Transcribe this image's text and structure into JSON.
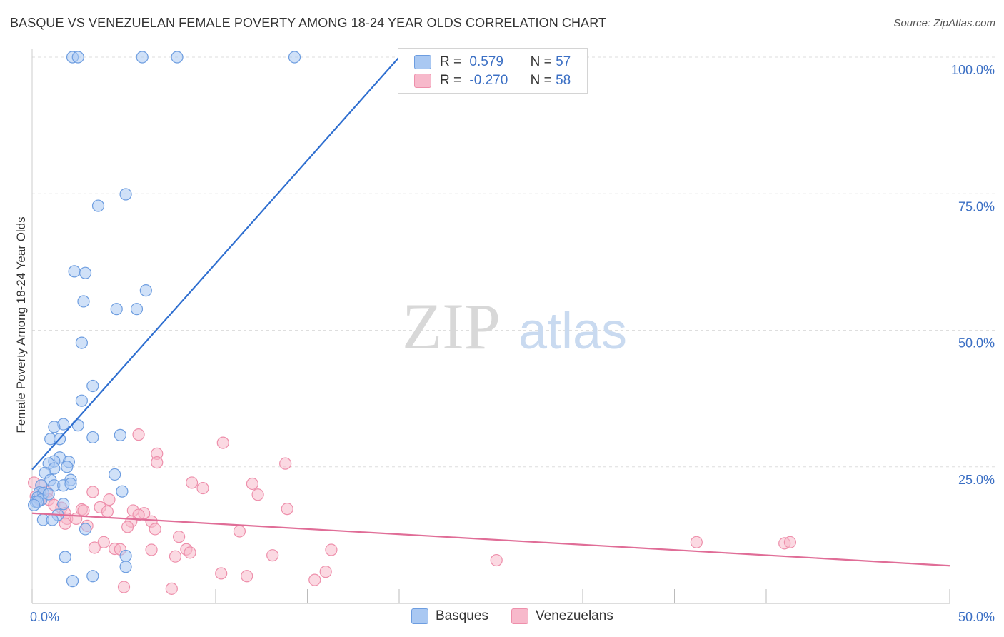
{
  "header": {
    "title": "BASQUE VS VENEZUELAN FEMALE POVERTY AMONG 18-24 YEAR OLDS CORRELATION CHART",
    "source": "Source: ZipAtlas.com"
  },
  "watermark": {
    "zip": "ZIP",
    "atlas": "atlas"
  },
  "legend": {
    "rows": [
      {
        "r_label": "R =",
        "r_value": " 0.579",
        "n_label": "N =",
        "n_value": "57",
        "color": "#a9c8f2"
      },
      {
        "r_label": "R =",
        "r_value": "-0.270",
        "n_label": "N =",
        "n_value": "58",
        "color": "#f7b9cb"
      }
    ]
  },
  "bottom_legend": {
    "basques": "Basques",
    "venezuelans": "Venezuelans"
  },
  "colors": {
    "basque_fill": "#a9c8f2",
    "basque_stroke": "#6d9de0",
    "basque_line": "#2f6fd0",
    "ven_fill": "#f7b9cb",
    "ven_stroke": "#ee8fab",
    "ven_line": "#e06d97"
  },
  "chart_data": {
    "type": "scatter",
    "title": "BASQUE VS VENEZUELAN FEMALE POVERTY AMONG 18-24 YEAR OLDS CORRELATION CHART",
    "xlabel": "",
    "ylabel": "Female Poverty Among 18-24 Year Olds",
    "xlim": [
      0,
      50
    ],
    "ylim": [
      0,
      100
    ],
    "x_tick_labels": [
      "0.0%",
      "50.0%"
    ],
    "y_ticks": [
      25,
      50,
      75,
      100
    ],
    "y_tick_labels": [
      "25.0%",
      "50.0%",
      "75.0%",
      "100.0%"
    ],
    "grid": true,
    "legend_position": "top-center",
    "series": [
      {
        "name": "Basques",
        "r": 0.579,
        "n": 57,
        "trend": [
          [
            0,
            24.5
          ],
          [
            20,
            100
          ]
        ],
        "points": [
          [
            2.2,
            100
          ],
          [
            2.5,
            100
          ],
          [
            6.0,
            100
          ],
          [
            7.9,
            100
          ],
          [
            14.3,
            100
          ],
          [
            27.9,
            100
          ],
          [
            5.1,
            74.9
          ],
          [
            3.6,
            72.8
          ],
          [
            2.3,
            60.8
          ],
          [
            2.9,
            60.5
          ],
          [
            6.2,
            57.3
          ],
          [
            2.8,
            55.3
          ],
          [
            4.6,
            53.9
          ],
          [
            5.7,
            53.9
          ],
          [
            2.7,
            47.7
          ],
          [
            3.3,
            39.8
          ],
          [
            2.7,
            37.1
          ],
          [
            1.7,
            32.8
          ],
          [
            1.2,
            32.3
          ],
          [
            2.5,
            32.6
          ],
          [
            1.0,
            30.1
          ],
          [
            1.5,
            30.1
          ],
          [
            3.3,
            30.4
          ],
          [
            4.8,
            30.8
          ],
          [
            1.5,
            26.7
          ],
          [
            1.2,
            26.0
          ],
          [
            2.0,
            25.9
          ],
          [
            0.9,
            25.6
          ],
          [
            1.9,
            25.0
          ],
          [
            1.2,
            24.7
          ],
          [
            0.7,
            23.9
          ],
          [
            4.5,
            23.6
          ],
          [
            1.0,
            22.6
          ],
          [
            2.1,
            22.6
          ],
          [
            0.5,
            21.6
          ],
          [
            1.2,
            21.6
          ],
          [
            1.7,
            21.6
          ],
          [
            0.4,
            20.3
          ],
          [
            0.6,
            20.2
          ],
          [
            4.9,
            20.5
          ],
          [
            2.1,
            21.9
          ],
          [
            0.3,
            19.4
          ],
          [
            0.5,
            19.0
          ],
          [
            0.9,
            20.0
          ],
          [
            0.2,
            18.6
          ],
          [
            1.7,
            18.2
          ],
          [
            0.3,
            18.6
          ],
          [
            0.1,
            18.0
          ],
          [
            1.4,
            16.2
          ],
          [
            0.6,
            15.3
          ],
          [
            1.1,
            15.3
          ],
          [
            2.9,
            13.6
          ],
          [
            1.8,
            8.5
          ],
          [
            5.1,
            8.7
          ],
          [
            5.1,
            6.7
          ],
          [
            3.3,
            5.0
          ],
          [
            2.2,
            4.1
          ]
        ]
      },
      {
        "name": "Venezuelans",
        "r": -0.27,
        "n": 58,
        "trend": [
          [
            0,
            16.5
          ],
          [
            50,
            6.9
          ]
        ],
        "points": [
          [
            0.1,
            22.1
          ],
          [
            0.5,
            21.6
          ],
          [
            0.8,
            20.4
          ],
          [
            0.4,
            19.0
          ],
          [
            0.9,
            19.0
          ],
          [
            1.2,
            18.0
          ],
          [
            1.6,
            17.5
          ],
          [
            1.8,
            16.5
          ],
          [
            2.7,
            17.2
          ],
          [
            1.9,
            15.5
          ],
          [
            1.8,
            14.6
          ],
          [
            3.3,
            20.4
          ],
          [
            4.2,
            19.0
          ],
          [
            3.7,
            17.6
          ],
          [
            4.1,
            16.8
          ],
          [
            3.0,
            14.2
          ],
          [
            2.4,
            15.5
          ],
          [
            5.8,
            30.9
          ],
          [
            6.8,
            27.4
          ],
          [
            6.8,
            25.8
          ],
          [
            10.4,
            29.4
          ],
          [
            13.8,
            25.6
          ],
          [
            8.7,
            22.1
          ],
          [
            9.3,
            21.1
          ],
          [
            12.0,
            21.9
          ],
          [
            12.3,
            19.9
          ],
          [
            13.9,
            17.3
          ],
          [
            5.5,
            17.0
          ],
          [
            6.1,
            16.5
          ],
          [
            5.8,
            16.2
          ],
          [
            5.4,
            15.0
          ],
          [
            6.5,
            15.0
          ],
          [
            5.2,
            14.0
          ],
          [
            6.7,
            13.6
          ],
          [
            8.0,
            12.2
          ],
          [
            11.3,
            13.2
          ],
          [
            3.9,
            11.2
          ],
          [
            3.4,
            10.2
          ],
          [
            4.5,
            10.0
          ],
          [
            4.8,
            9.9
          ],
          [
            6.5,
            9.8
          ],
          [
            8.4,
            9.9
          ],
          [
            8.6,
            9.3
          ],
          [
            7.8,
            8.6
          ],
          [
            13.1,
            8.8
          ],
          [
            16.3,
            9.8
          ],
          [
            25.3,
            7.9
          ],
          [
            36.2,
            11.2
          ],
          [
            41.0,
            11.0
          ],
          [
            41.3,
            11.2
          ],
          [
            10.3,
            5.5
          ],
          [
            11.7,
            5.0
          ],
          [
            16.0,
            5.8
          ],
          [
            15.4,
            4.3
          ],
          [
            5.0,
            3.0
          ],
          [
            7.6,
            2.7
          ],
          [
            0.2,
            19.6
          ],
          [
            2.8,
            17.0
          ]
        ]
      }
    ]
  }
}
